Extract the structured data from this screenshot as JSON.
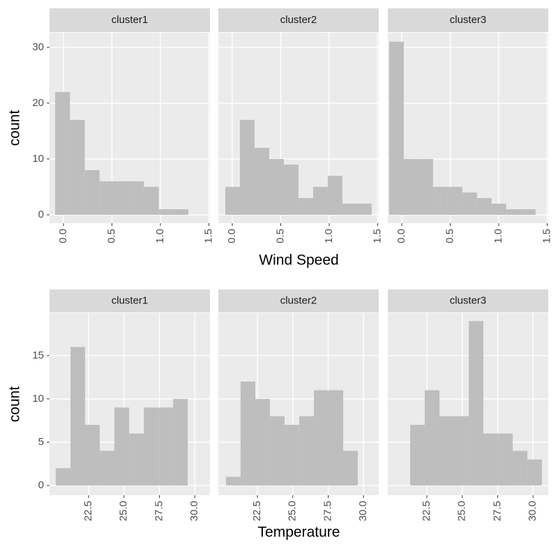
{
  "chart_data": [
    {
      "type": "histogram",
      "xlabel": "Wind Speed",
      "ylabel": "count",
      "color": "#BEBEBE",
      "xlim": [
        -0.144,
        1.511
      ],
      "xticks": [
        {
          "value": 0,
          "label": "0.0"
        },
        {
          "value": 0.5,
          "label": "0.5"
        },
        {
          "value": 1,
          "label": "1.0"
        },
        {
          "value": 1.5,
          "label": "1.5"
        }
      ],
      "ylim": [
        -1.5,
        32.6
      ],
      "yticks": [
        0,
        10,
        20,
        30
      ],
      "grid": true,
      "panels": [
        {
          "title": "cluster1",
          "bins": [
            -0.086,
            0.067,
            0.22,
            0.372,
            0.525,
            0.678,
            0.83,
            0.983,
            1.136,
            1.288
          ],
          "values": [
            22,
            17,
            8,
            6,
            6,
            6,
            5,
            1,
            1
          ]
        },
        {
          "title": "cluster2",
          "bins": [
            -0.072,
            0.079,
            0.23,
            0.381,
            0.532,
            0.683,
            0.834,
            0.985,
            1.136,
            1.287,
            1.438
          ],
          "values": [
            5,
            17,
            12,
            10,
            9,
            3,
            5,
            7,
            2,
            2
          ]
        },
        {
          "title": "cluster3",
          "bins": [
            -0.13,
            0.021,
            0.172,
            0.323,
            0.474,
            0.625,
            0.776,
            0.927,
            1.078,
            1.229,
            1.38
          ],
          "values": [
            31,
            10,
            10,
            5,
            5,
            4,
            3,
            2,
            1,
            1
          ]
        }
      ]
    },
    {
      "type": "histogram",
      "xlabel": "Temperature",
      "ylabel": "count",
      "color": "#BEBEBE",
      "xlim": [
        19.74,
        31.07
      ],
      "xticks": [
        {
          "value": 22.5,
          "label": "22.5"
        },
        {
          "value": 25,
          "label": "25.0"
        },
        {
          "value": 27.5,
          "label": "27.5"
        },
        {
          "value": 30,
          "label": "30.0"
        }
      ],
      "ylim": [
        -1.13,
        19.9
      ],
      "yticks": [
        0,
        5,
        10,
        15
      ],
      "grid": true,
      "panels": [
        {
          "title": "cluster1",
          "bins": [
            20.18,
            21.22,
            22.25,
            23.29,
            24.32,
            25.36,
            26.4,
            27.43,
            28.47,
            29.5
          ],
          "values": [
            2,
            16,
            7,
            4,
            9,
            6,
            9,
            9,
            10
          ]
        },
        {
          "title": "cluster2",
          "bins": [
            20.28,
            21.31,
            22.35,
            23.38,
            24.42,
            25.45,
            26.49,
            27.52,
            28.56,
            29.59
          ],
          "values": [
            1,
            12,
            10,
            8,
            7,
            8,
            11,
            11,
            4
          ]
        },
        {
          "title": "cluster3",
          "bins": [
            21.32,
            22.35,
            23.39,
            24.42,
            25.46,
            26.49,
            27.53,
            28.56,
            29.6,
            30.63
          ],
          "values": [
            7,
            11,
            8,
            8,
            19,
            6,
            6,
            4,
            3
          ]
        }
      ]
    }
  ]
}
